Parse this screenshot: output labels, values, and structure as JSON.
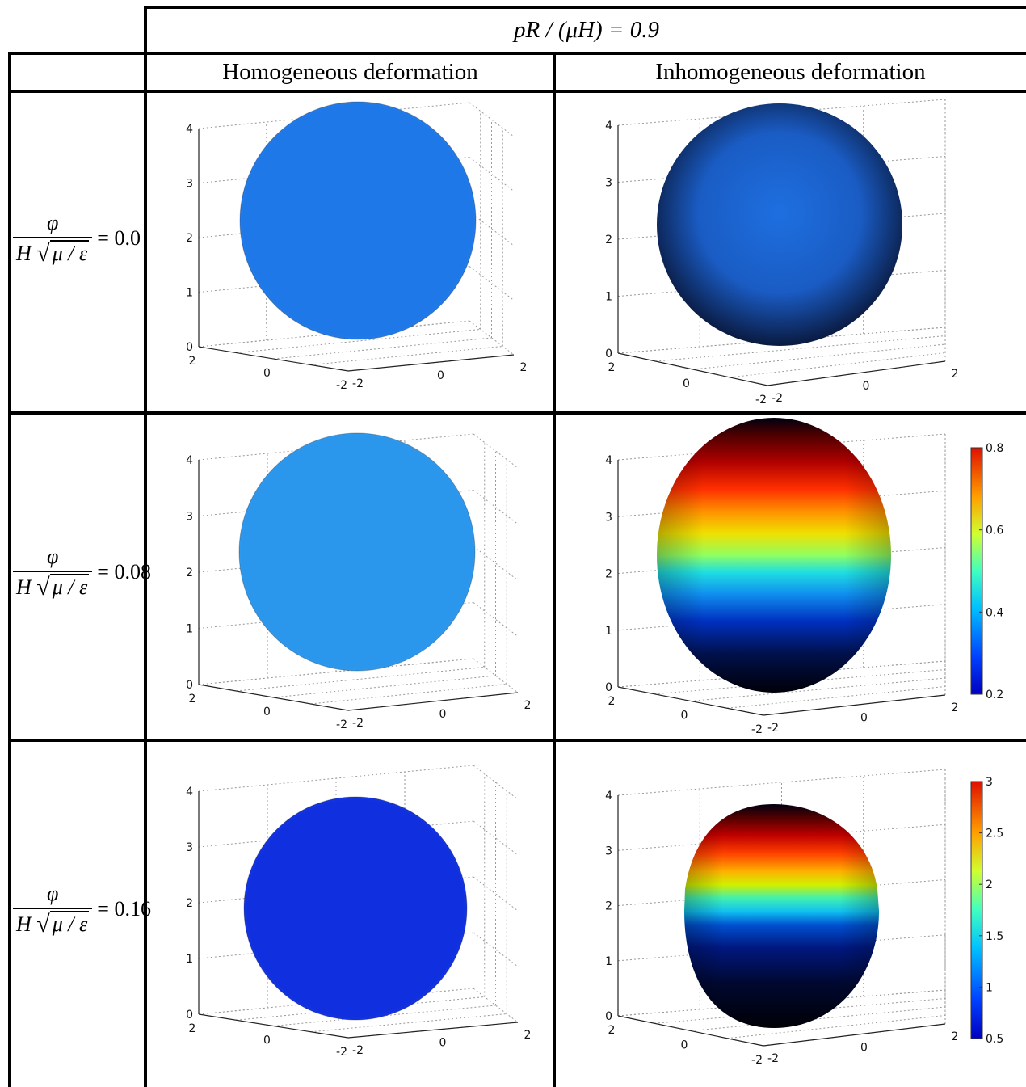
{
  "header": {
    "title": "pR / (μH) = 0.9",
    "col_homogeneous": "Homogeneous deformation",
    "col_inhomogeneous": "Inhomogeneous deformation"
  },
  "row_label": {
    "numerator": "φ",
    "denominator_h": "H",
    "denominator_rad": "μ / ε"
  },
  "rows": [
    {
      "value": "= 0.0"
    },
    {
      "value": "= 0.08"
    },
    {
      "value": "= 0.16"
    }
  ],
  "axes": {
    "z_ticks": [
      "0",
      "1",
      "2",
      "3",
      "4"
    ],
    "left_ticks": [
      "2",
      "0",
      "-2"
    ],
    "right_ticks": [
      "-2",
      "0",
      "2"
    ]
  },
  "colorbars": {
    "row2": {
      "ticks": [
        "0.8",
        "0.6",
        "0.4",
        "0.2"
      ]
    },
    "row3": {
      "ticks": [
        "3",
        "2.5",
        "2",
        "1.5",
        "1",
        "0.5"
      ]
    }
  },
  "colors": {
    "homogeneous_row1": "#1e78e8",
    "homogeneous_row2": "#2a96ec",
    "homogeneous_row3": "#1030e0"
  }
}
